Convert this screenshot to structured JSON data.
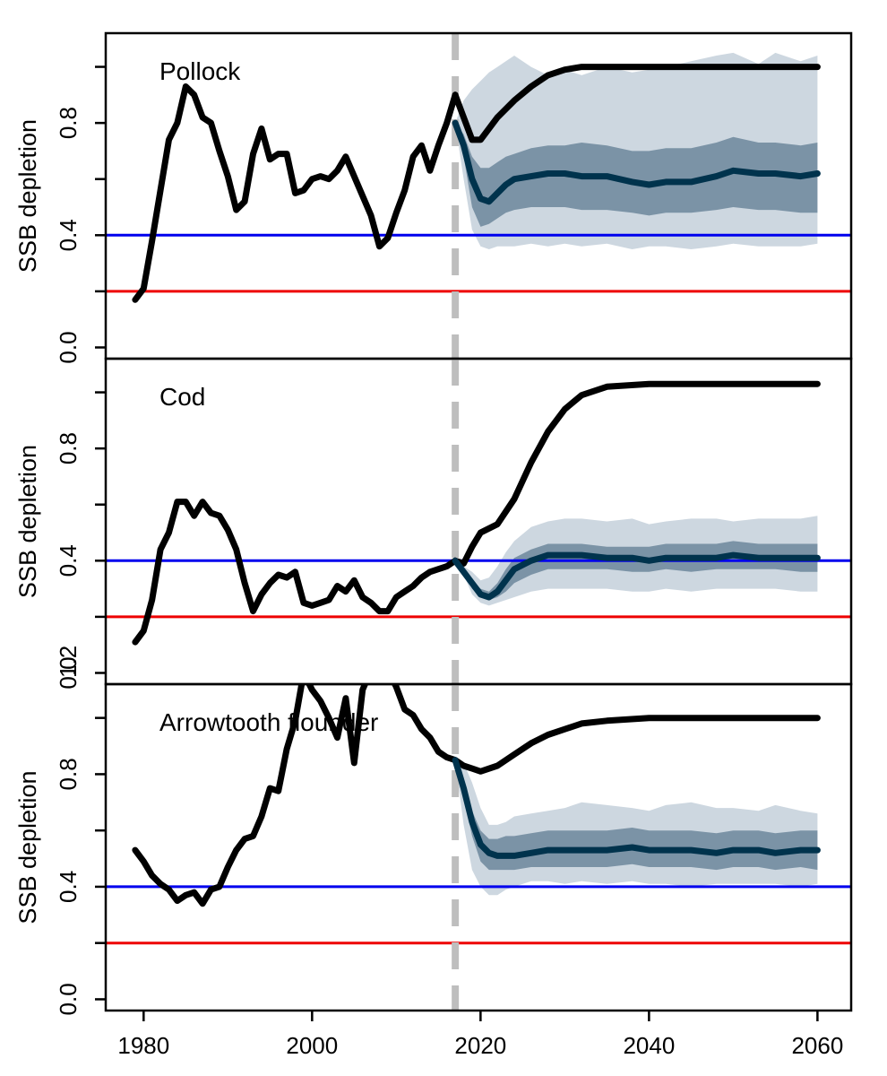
{
  "chart_data": {
    "type": "line",
    "xlabel": "",
    "x_ticks": [
      1980,
      2000,
      2020,
      2040,
      2060
    ],
    "xlim": [
      1975.5,
      2064
    ],
    "ylim": [
      -0.04,
      1.12
    ],
    "y_ticks": [
      0.0,
      0.4,
      0.8
    ],
    "y_tick_labels": [
      "0.0",
      "0.4",
      "0.8"
    ],
    "bottom_panel_y_tick_labels": [
      "0.0",
      "0.4",
      "0.8",
      "1.2"
    ],
    "ylabel": "SSB depletion",
    "reference_lines": [
      {
        "value": 0.4,
        "color": "#0000ee"
      },
      {
        "value": 0.2,
        "color": "#ee0000"
      }
    ],
    "vertical_marker": {
      "x": 2017,
      "style": "dashed",
      "color": "#bebebe"
    },
    "colors": {
      "history": "#000000",
      "projection_median": "#00334d",
      "inner_band": "#7b93a6",
      "outer_band": "#cdd7e0"
    },
    "panels": [
      {
        "label": "Pollock",
        "history": {
          "x": [
            1979,
            1980,
            1981,
            1982,
            1983,
            1984,
            1985,
            1986,
            1987,
            1988,
            1989,
            1990,
            1991,
            1992,
            1993,
            1994,
            1995,
            1996,
            1997,
            1998,
            1999,
            2000,
            2001,
            2002,
            2003,
            2004,
            2005,
            2006,
            2007,
            2008,
            2009,
            2010,
            2011,
            2012,
            2013,
            2014,
            2015,
            2016,
            2017
          ],
          "y": [
            0.17,
            0.21,
            0.38,
            0.56,
            0.74,
            0.8,
            0.93,
            0.9,
            0.82,
            0.8,
            0.7,
            0.61,
            0.49,
            0.52,
            0.69,
            0.78,
            0.67,
            0.69,
            0.69,
            0.55,
            0.56,
            0.6,
            0.61,
            0.6,
            0.63,
            0.68,
            0.61,
            0.54,
            0.47,
            0.36,
            0.39,
            0.48,
            0.56,
            0.68,
            0.72,
            0.63,
            0.72,
            0.8,
            0.9
          ]
        },
        "status_quo": {
          "x": [
            2017,
            2018,
            2019,
            2020,
            2022,
            2024,
            2026,
            2028,
            2030,
            2032,
            2035,
            2040,
            2045,
            2050,
            2055,
            2060
          ],
          "y": [
            0.9,
            0.82,
            0.74,
            0.74,
            0.82,
            0.88,
            0.93,
            0.97,
            0.99,
            1.0,
            1.0,
            1.0,
            1.0,
            1.0,
            1.0,
            1.0
          ]
        },
        "projection": {
          "x": [
            2017,
            2018,
            2019,
            2020,
            2021,
            2022,
            2023,
            2024,
            2026,
            2028,
            2030,
            2032,
            2035,
            2038,
            2040,
            2042,
            2045,
            2048,
            2050,
            2053,
            2055,
            2058,
            2060
          ],
          "median": [
            0.8,
            0.72,
            0.6,
            0.53,
            0.52,
            0.55,
            0.58,
            0.6,
            0.61,
            0.62,
            0.62,
            0.61,
            0.61,
            0.59,
            0.58,
            0.59,
            0.59,
            0.61,
            0.63,
            0.62,
            0.62,
            0.61,
            0.62
          ],
          "inner_lo": [
            0.8,
            0.68,
            0.5,
            0.43,
            0.44,
            0.46,
            0.48,
            0.49,
            0.5,
            0.5,
            0.5,
            0.49,
            0.49,
            0.48,
            0.47,
            0.48,
            0.48,
            0.49,
            0.5,
            0.49,
            0.49,
            0.48,
            0.48
          ],
          "inner_hi": [
            0.8,
            0.76,
            0.68,
            0.64,
            0.64,
            0.66,
            0.68,
            0.69,
            0.71,
            0.72,
            0.72,
            0.73,
            0.72,
            0.7,
            0.7,
            0.71,
            0.71,
            0.73,
            0.75,
            0.73,
            0.73,
            0.72,
            0.73
          ],
          "outer_lo": [
            0.8,
            0.6,
            0.42,
            0.36,
            0.35,
            0.36,
            0.36,
            0.36,
            0.37,
            0.36,
            0.37,
            0.36,
            0.37,
            0.35,
            0.36,
            0.36,
            0.35,
            0.36,
            0.37,
            0.36,
            0.36,
            0.36,
            0.37
          ],
          "outer_hi": [
            0.8,
            0.88,
            0.92,
            0.95,
            0.98,
            1.0,
            1.02,
            1.04,
            1.0,
            0.97,
            0.99,
            0.97,
            1.0,
            0.98,
            0.99,
            1.0,
            1.02,
            1.04,
            1.05,
            1.01,
            1.05,
            1.02,
            1.04
          ]
        }
      },
      {
        "label": "Cod",
        "history": {
          "x": [
            1979,
            1980,
            1981,
            1982,
            1983,
            1984,
            1985,
            1986,
            1987,
            1988,
            1989,
            1990,
            1991,
            1992,
            1993,
            1994,
            1995,
            1996,
            1997,
            1998,
            1999,
            2000,
            2001,
            2002,
            2003,
            2004,
            2005,
            2006,
            2007,
            2008,
            2009,
            2010,
            2011,
            2012,
            2013,
            2014,
            2015,
            2016,
            2017
          ],
          "y": [
            0.11,
            0.15,
            0.26,
            0.44,
            0.5,
            0.61,
            0.61,
            0.56,
            0.61,
            0.57,
            0.56,
            0.51,
            0.44,
            0.32,
            0.22,
            0.28,
            0.32,
            0.35,
            0.34,
            0.36,
            0.25,
            0.24,
            0.25,
            0.26,
            0.31,
            0.29,
            0.33,
            0.27,
            0.25,
            0.22,
            0.22,
            0.27,
            0.29,
            0.31,
            0.34,
            0.36,
            0.37,
            0.38,
            0.4
          ]
        },
        "status_quo": {
          "x": [
            2017,
            2018,
            2019,
            2020,
            2022,
            2024,
            2026,
            2028,
            2030,
            2032,
            2035,
            2040,
            2045,
            2050,
            2055,
            2060
          ],
          "y": [
            0.4,
            0.39,
            0.45,
            0.5,
            0.53,
            0.62,
            0.75,
            0.86,
            0.94,
            0.99,
            1.02,
            1.03,
            1.03,
            1.03,
            1.03,
            1.03
          ]
        },
        "projection": {
          "x": [
            2017,
            2018,
            2019,
            2020,
            2021,
            2022,
            2023,
            2024,
            2026,
            2028,
            2030,
            2032,
            2035,
            2038,
            2040,
            2042,
            2045,
            2048,
            2050,
            2053,
            2055,
            2058,
            2060
          ],
          "median": [
            0.4,
            0.36,
            0.32,
            0.28,
            0.27,
            0.29,
            0.33,
            0.37,
            0.4,
            0.42,
            0.42,
            0.42,
            0.41,
            0.41,
            0.4,
            0.41,
            0.41,
            0.41,
            0.42,
            0.41,
            0.41,
            0.41,
            0.41
          ],
          "inner_lo": [
            0.4,
            0.36,
            0.3,
            0.27,
            0.26,
            0.27,
            0.29,
            0.32,
            0.35,
            0.37,
            0.37,
            0.37,
            0.37,
            0.36,
            0.36,
            0.37,
            0.36,
            0.37,
            0.37,
            0.37,
            0.37,
            0.36,
            0.36
          ],
          "inner_hi": [
            0.4,
            0.37,
            0.33,
            0.3,
            0.29,
            0.32,
            0.37,
            0.41,
            0.44,
            0.46,
            0.46,
            0.46,
            0.45,
            0.45,
            0.45,
            0.46,
            0.46,
            0.46,
            0.47,
            0.46,
            0.46,
            0.46,
            0.46
          ],
          "outer_lo": [
            0.4,
            0.35,
            0.28,
            0.25,
            0.24,
            0.25,
            0.26,
            0.27,
            0.29,
            0.3,
            0.3,
            0.3,
            0.3,
            0.29,
            0.29,
            0.3,
            0.29,
            0.3,
            0.3,
            0.3,
            0.3,
            0.29,
            0.29
          ],
          "outer_hi": [
            0.4,
            0.38,
            0.36,
            0.33,
            0.34,
            0.38,
            0.43,
            0.47,
            0.52,
            0.54,
            0.55,
            0.55,
            0.54,
            0.55,
            0.53,
            0.54,
            0.55,
            0.55,
            0.54,
            0.55,
            0.55,
            0.55,
            0.56
          ]
        }
      },
      {
        "label": "Arrowtooth flounder",
        "history": {
          "x": [
            1979,
            1980,
            1981,
            1982,
            1983,
            1984,
            1985,
            1986,
            1987,
            1988,
            1989,
            1990,
            1991,
            1992,
            1993,
            1994,
            1995,
            1996,
            1997,
            1998,
            1999,
            2000,
            2001,
            2002,
            2003,
            2004,
            2005,
            2006,
            2007,
            2008,
            2009,
            2010,
            2011,
            2012,
            2013,
            2014,
            2015,
            2016,
            2017
          ],
          "y": [
            0.53,
            0.49,
            0.44,
            0.41,
            0.39,
            0.35,
            0.37,
            0.38,
            0.34,
            0.39,
            0.4,
            0.47,
            0.53,
            0.57,
            0.58,
            0.65,
            0.75,
            0.74,
            0.89,
            0.99,
            1.16,
            1.1,
            1.06,
            1.0,
            0.93,
            1.07,
            0.84,
            1.1,
            1.17,
            1.19,
            1.17,
            1.11,
            1.03,
            1.01,
            0.96,
            0.93,
            0.88,
            0.86,
            0.85
          ]
        },
        "status_quo": {
          "x": [
            2017,
            2018,
            2019,
            2020,
            2022,
            2024,
            2026,
            2028,
            2030,
            2032,
            2035,
            2040,
            2045,
            2050,
            2055,
            2060
          ],
          "y": [
            0.85,
            0.83,
            0.82,
            0.81,
            0.83,
            0.87,
            0.91,
            0.94,
            0.96,
            0.98,
            0.99,
            1.0,
            1.0,
            1.0,
            1.0,
            1.0
          ]
        },
        "projection": {
          "x": [
            2017,
            2018,
            2019,
            2020,
            2021,
            2022,
            2023,
            2024,
            2026,
            2028,
            2030,
            2032,
            2035,
            2038,
            2040,
            2042,
            2045,
            2048,
            2050,
            2053,
            2055,
            2058,
            2060
          ],
          "median": [
            0.85,
            0.75,
            0.63,
            0.55,
            0.52,
            0.51,
            0.51,
            0.51,
            0.52,
            0.53,
            0.53,
            0.53,
            0.53,
            0.54,
            0.53,
            0.53,
            0.53,
            0.52,
            0.53,
            0.53,
            0.52,
            0.53,
            0.53
          ],
          "inner_lo": [
            0.85,
            0.72,
            0.58,
            0.49,
            0.46,
            0.46,
            0.46,
            0.46,
            0.47,
            0.47,
            0.47,
            0.47,
            0.47,
            0.48,
            0.47,
            0.47,
            0.47,
            0.46,
            0.47,
            0.47,
            0.46,
            0.47,
            0.46
          ],
          "inner_hi": [
            0.85,
            0.78,
            0.67,
            0.6,
            0.57,
            0.57,
            0.58,
            0.58,
            0.59,
            0.6,
            0.6,
            0.6,
            0.6,
            0.61,
            0.6,
            0.6,
            0.6,
            0.59,
            0.6,
            0.6,
            0.59,
            0.6,
            0.6
          ],
          "outer_lo": [
            0.85,
            0.62,
            0.46,
            0.4,
            0.37,
            0.37,
            0.39,
            0.4,
            0.42,
            0.42,
            0.41,
            0.42,
            0.41,
            0.42,
            0.41,
            0.41,
            0.4,
            0.41,
            0.41,
            0.41,
            0.41,
            0.4,
            0.41
          ],
          "outer_hi": [
            0.85,
            0.84,
            0.77,
            0.68,
            0.62,
            0.62,
            0.63,
            0.65,
            0.66,
            0.67,
            0.68,
            0.7,
            0.69,
            0.68,
            0.67,
            0.69,
            0.7,
            0.68,
            0.68,
            0.67,
            0.69,
            0.67,
            0.66
          ]
        }
      }
    ]
  }
}
